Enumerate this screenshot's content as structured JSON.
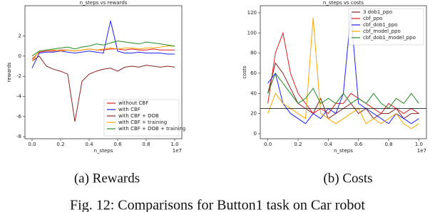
{
  "chart_data": [
    {
      "type": "line",
      "title": "n_steps vs rewards",
      "xlabel": "n_steps",
      "ylabel": "rewards",
      "x_offset_label": "1e7",
      "caption": "(a) Rewards",
      "x": [
        0,
        0.05,
        0.1,
        0.15,
        0.2,
        0.25,
        0.3,
        0.35,
        0.4,
        0.45,
        0.5,
        0.55,
        0.6,
        0.65,
        0.7,
        0.75,
        0.8,
        0.85,
        0.9,
        0.95,
        1.0
      ],
      "xlim": [
        -0.05,
        1.05
      ],
      "xticks": [
        {
          "value": 0,
          "label": "0.0"
        },
        0.2,
        0.4,
        0.6,
        0.8,
        {
          "value": 1,
          "label": "1.0"
        }
      ],
      "ylim": [
        -8.2,
        5
      ],
      "yticks": [
        -8,
        -6,
        -4,
        -2,
        0,
        2
      ],
      "legend": "lower right",
      "series": [
        {
          "name": "without CBF",
          "color": "#e41a1c",
          "values": [
            -0.3,
            0.4,
            0.5,
            0.5,
            0.6,
            0.6,
            0.5,
            0.6,
            0.7,
            0.6,
            0.6,
            0.7,
            0.7,
            0.6,
            0.7,
            0.6,
            0.6,
            0.7,
            0.6,
            0.6,
            0.6
          ]
        },
        {
          "name": "with CBF",
          "color": "#1f1fff",
          "values": [
            -1.2,
            0.3,
            0.4,
            0.4,
            0.5,
            0.4,
            0.3,
            0.4,
            0.5,
            0.4,
            0.3,
            3.5,
            0.5,
            0.3,
            0.3,
            0.4,
            0.3,
            0.3,
            0.3,
            0.2,
            0.2
          ]
        },
        {
          "name": "with CBF + DOB",
          "color": "#8b2222",
          "values": [
            -0.5,
            0,
            -1.0,
            -1.3,
            -1.5,
            -1.8,
            -6.5,
            -2.5,
            -1.8,
            -1.5,
            -1.3,
            -1.2,
            -1.5,
            -1.1,
            -1.0,
            -1.1,
            -0.9,
            -1.0,
            -1.1,
            -1.0,
            -1.1
          ]
        },
        {
          "name": "with CBF + training",
          "color": "#ffa500",
          "values": [
            -0.5,
            0.5,
            0.6,
            0.6,
            0.5,
            0.6,
            0.5,
            0.6,
            0.7,
            0.6,
            0.7,
            0.8,
            0.7,
            0.8,
            0.8,
            0.7,
            0.8,
            0.8,
            0.9,
            1.0,
            1.0
          ]
        },
        {
          "name": "with CBF + DOB + training",
          "color": "#228b22",
          "values": [
            0,
            0.5,
            0.6,
            0.7,
            0.8,
            0.9,
            0.7,
            0.9,
            1.0,
            1.2,
            1.1,
            1.3,
            1.5,
            1.4,
            1.3,
            1.2,
            1.4,
            1.3,
            1.2,
            1.1,
            1.0
          ]
        }
      ]
    },
    {
      "type": "line",
      "title": "n_steps vs costs",
      "xlabel": "n_steps",
      "ylabel": "costs",
      "x_offset_label": "1e7",
      "caption": "(b) Costs",
      "x": [
        0,
        0.05,
        0.1,
        0.15,
        0.2,
        0.25,
        0.3,
        0.35,
        0.4,
        0.45,
        0.5,
        0.55,
        0.6,
        0.65,
        0.7,
        0.75,
        0.8,
        0.85,
        0.9,
        0.95,
        1.0
      ],
      "xlim": [
        -0.05,
        1.05
      ],
      "xticks": [
        {
          "value": 0,
          "label": "0.0"
        },
        0.2,
        0.4,
        0.6,
        0.8,
        {
          "value": 1,
          "label": "1.0"
        }
      ],
      "ylim": [
        -5,
        127
      ],
      "yticks": [
        0,
        20,
        40,
        60,
        80,
        100,
        120
      ],
      "legend": "upper right",
      "hline": 25,
      "series": [
        {
          "name": "3 dob1_ppo",
          "color": "#8b2222",
          "values": [
            40,
            70,
            60,
            45,
            30,
            25,
            20,
            35,
            15,
            20,
            25,
            30,
            20,
            25,
            15,
            20,
            20,
            25,
            15,
            20,
            20
          ]
        },
        {
          "name": "cbf_ppo",
          "color": "#e41a1c",
          "values": [
            30,
            80,
            100,
            60,
            40,
            30,
            20,
            25,
            20,
            30,
            30,
            40,
            35,
            30,
            25,
            20,
            30,
            25,
            20,
            25,
            20
          ]
        },
        {
          "name": "cbf_dob1_ppo",
          "color": "#1f1fff",
          "values": [
            50,
            60,
            30,
            20,
            15,
            10,
            20,
            15,
            25,
            20,
            40,
            120,
            30,
            25,
            20,
            15,
            10,
            20,
            15,
            10,
            15
          ]
        },
        {
          "name": "cbf_model_ppo",
          "color": "#ffa500",
          "values": [
            20,
            40,
            30,
            25,
            20,
            15,
            115,
            20,
            15,
            10,
            15,
            20,
            25,
            10,
            15,
            10,
            15,
            20,
            10,
            5,
            10
          ]
        },
        {
          "name": "cbf_dob1_model_ppo",
          "color": "#228b22",
          "values": [
            40,
            60,
            50,
            40,
            30,
            35,
            45,
            30,
            35,
            30,
            40,
            30,
            35,
            30,
            40,
            30,
            25,
            35,
            30,
            40,
            30
          ]
        }
      ]
    }
  ],
  "figure_caption": "Fig. 12: Comparisons for Button1 task on Car robot"
}
